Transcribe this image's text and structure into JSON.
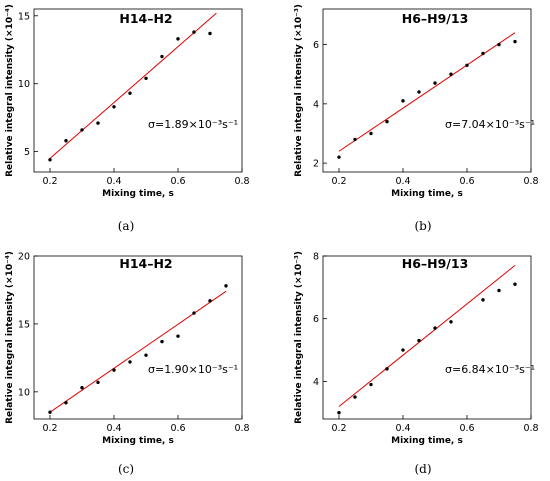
{
  "figure": {
    "name": "four-panel-scatter-figure"
  },
  "chart_data": [
    {
      "type": "scatter",
      "panel_label": "(a)",
      "title": "H14–H2",
      "xlabel": "Mixing time, s",
      "ylabel": "Relative integral intensity (×10⁻⁴)",
      "xlim": [
        0.15,
        0.8
      ],
      "ylim": [
        3.5,
        15.5
      ],
      "xticks": [
        0.2,
        0.4,
        0.6,
        0.8
      ],
      "yticks": [
        5,
        10,
        15
      ],
      "grid": false,
      "annotation": "σ=1.89×10⁻³s⁻¹",
      "fit_line": {
        "x": [
          0.2,
          0.72
        ],
        "y": [
          4.5,
          15.2
        ]
      },
      "x": [
        0.2,
        0.25,
        0.3,
        0.35,
        0.4,
        0.45,
        0.5,
        0.55,
        0.6,
        0.65,
        0.7
      ],
      "y": [
        4.4,
        5.8,
        6.6,
        7.1,
        8.3,
        9.3,
        10.4,
        12.0,
        13.3,
        13.8,
        13.7
      ]
    },
    {
      "type": "scatter",
      "panel_label": "(b)",
      "title": "H6–H9/13",
      "xlabel": "Mixing time, s",
      "ylabel": "Relative integral intensity (×10⁻³)",
      "xlim": [
        0.15,
        0.8
      ],
      "ylim": [
        1.7,
        7.2
      ],
      "xticks": [
        0.2,
        0.4,
        0.6,
        0.8
      ],
      "yticks": [
        2,
        4,
        6
      ],
      "grid": false,
      "annotation": "σ=7.04×10⁻³s⁻¹",
      "fit_line": {
        "x": [
          0.2,
          0.75
        ],
        "y": [
          2.4,
          6.4
        ]
      },
      "x": [
        0.2,
        0.25,
        0.3,
        0.35,
        0.4,
        0.45,
        0.5,
        0.55,
        0.6,
        0.65,
        0.7,
        0.75
      ],
      "y": [
        2.2,
        2.8,
        3.0,
        3.4,
        4.1,
        4.4,
        4.7,
        5.0,
        5.3,
        5.7,
        6.0,
        6.1
      ]
    },
    {
      "type": "scatter",
      "panel_label": "(c)",
      "title": "H14–H2",
      "xlabel": "Mixing time, s",
      "ylabel": "Relative integral intensity (×10⁻⁴)",
      "xlim": [
        0.15,
        0.8
      ],
      "ylim": [
        8,
        20
      ],
      "xticks": [
        0.2,
        0.4,
        0.6,
        0.8
      ],
      "yticks": [
        10,
        15,
        20
      ],
      "grid": false,
      "annotation": "σ=1.90×10⁻³s⁻¹",
      "fit_line": {
        "x": [
          0.2,
          0.75
        ],
        "y": [
          8.5,
          17.4
        ]
      },
      "x": [
        0.2,
        0.25,
        0.3,
        0.35,
        0.4,
        0.45,
        0.5,
        0.55,
        0.6,
        0.65,
        0.7,
        0.75
      ],
      "y": [
        8.5,
        9.2,
        10.3,
        10.7,
        11.6,
        12.2,
        12.7,
        13.7,
        14.1,
        15.8,
        16.7,
        17.8
      ]
    },
    {
      "type": "scatter",
      "panel_label": "(d)",
      "title": "H6–H9/13",
      "xlabel": "Mixing time, s",
      "ylabel": "Relative integral intensity (×10⁻³)",
      "xlim": [
        0.15,
        0.8
      ],
      "ylim": [
        2.8,
        8.0
      ],
      "xticks": [
        0.2,
        0.4,
        0.6,
        0.8
      ],
      "yticks": [
        4,
        6,
        8
      ],
      "grid": false,
      "annotation": "σ=6.84×10⁻³s⁻¹",
      "fit_line": {
        "x": [
          0.2,
          0.75
        ],
        "y": [
          3.2,
          7.7
        ]
      },
      "x": [
        0.2,
        0.25,
        0.3,
        0.35,
        0.4,
        0.45,
        0.5,
        0.55,
        0.65,
        0.7,
        0.75
      ],
      "y": [
        3.0,
        3.5,
        3.9,
        4.4,
        5.0,
        5.3,
        5.7,
        5.9,
        6.6,
        6.9,
        7.1
      ]
    }
  ]
}
